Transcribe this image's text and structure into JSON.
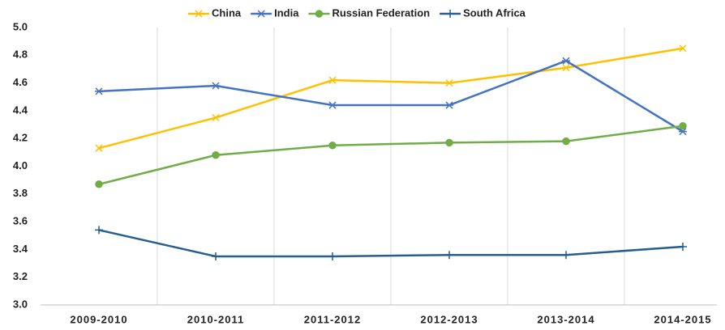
{
  "chart_data": {
    "type": "line",
    "categories": [
      "2009-2010",
      "2010-2011",
      "2011-2012",
      "2012-2013",
      "2013-2014",
      "2014-2015"
    ],
    "series": [
      {
        "name": "China",
        "color": "#ffc000",
        "marker": "x",
        "values": [
          4.13,
          4.35,
          4.62,
          4.6,
          4.71,
          4.85
        ]
      },
      {
        "name": "India",
        "color": "#4472c4",
        "marker": "star",
        "values": [
          4.54,
          4.58,
          4.44,
          4.44,
          4.76,
          4.25
        ]
      },
      {
        "name": "Russian Federation",
        "color": "#70ad47",
        "marker": "circle",
        "values": [
          3.87,
          4.08,
          4.15,
          4.17,
          4.18,
          4.29
        ]
      },
      {
        "name": "South Africa",
        "color": "#255e91",
        "marker": "plus",
        "values": [
          3.54,
          3.35,
          3.35,
          3.36,
          3.36,
          3.42
        ]
      }
    ],
    "ylim": [
      3.0,
      5.0
    ],
    "yticks": [
      {
        "value": 3.0,
        "label": "3.0"
      },
      3.2,
      3.4,
      3.6,
      3.8,
      {
        "value": 4.0,
        "label": "4.0"
      },
      4.2,
      4.4,
      4.6,
      4.8,
      {
        "value": 5.0,
        "label": "5.0"
      }
    ],
    "grid": true,
    "legend": "top"
  }
}
